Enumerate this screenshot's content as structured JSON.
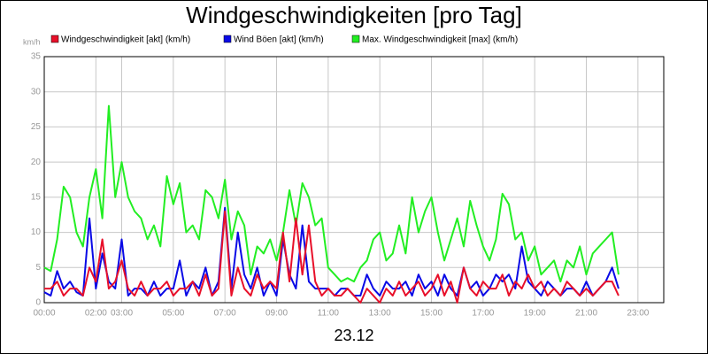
{
  "chart_data": {
    "type": "line",
    "title": "Windgeschwindigkeiten [pro Tag]",
    "x_label": "23.12",
    "y_label": "km/h",
    "x": [
      0,
      0.25,
      0.5,
      0.75,
      1,
      1.25,
      1.5,
      1.75,
      2,
      2.25,
      2.5,
      2.75,
      3,
      3.25,
      3.5,
      3.75,
      4,
      4.25,
      4.5,
      4.75,
      5,
      5.25,
      5.5,
      5.75,
      6,
      6.25,
      6.5,
      6.75,
      7,
      7.25,
      7.5,
      7.75,
      8,
      8.25,
      8.5,
      8.75,
      9,
      9.25,
      9.5,
      9.75,
      10,
      10.25,
      10.5,
      10.75,
      11,
      11.25,
      11.5,
      11.75,
      12,
      12.25,
      12.5,
      12.75,
      13,
      13.25,
      13.5,
      13.75,
      14,
      14.25,
      14.5,
      14.75,
      15,
      15.25,
      15.5,
      15.75,
      16,
      16.25,
      16.5,
      16.75,
      17,
      17.25,
      17.5,
      17.75,
      18,
      18.25,
      18.5,
      18.75,
      19,
      19.25,
      19.5,
      19.75,
      20,
      20.25,
      20.5,
      20.75,
      21,
      21.25,
      21.5,
      21.75,
      22,
      22.25
    ],
    "xlim": [
      0,
      24
    ],
    "xticks": [
      {
        "value": 0,
        "label": "00:00"
      },
      {
        "value": 2,
        "label": "02:00"
      },
      {
        "value": 3,
        "label": "03:00"
      },
      {
        "value": 5,
        "label": "05:00"
      },
      {
        "value": 7,
        "label": "07:00"
      },
      {
        "value": 9,
        "label": "09:00"
      },
      {
        "value": 11,
        "label": "11:00"
      },
      {
        "value": 13,
        "label": "13:00"
      },
      {
        "value": 15,
        "label": "15:00"
      },
      {
        "value": 17,
        "label": "17:00"
      },
      {
        "value": 19,
        "label": "19:00"
      },
      {
        "value": 21,
        "label": "21:00"
      },
      {
        "value": 23,
        "label": "23:00"
      }
    ],
    "ylim": [
      0,
      35
    ],
    "yticks": [
      0,
      5,
      10,
      15,
      20,
      25,
      30,
      35
    ],
    "grid": true,
    "series": [
      {
        "name": "Windgeschwindigkeit [akt] (km/h)",
        "color": "#e8102a",
        "values": [
          2,
          2,
          3,
          1,
          2,
          2,
          1,
          5,
          3,
          9,
          2,
          3,
          6,
          2,
          1,
          3,
          1,
          2,
          2,
          3,
          1,
          2,
          2,
          3,
          1,
          4,
          1,
          2,
          13,
          1,
          5,
          2,
          1,
          4,
          2,
          3,
          2,
          10,
          3,
          12,
          4,
          11,
          3,
          1,
          2,
          1,
          1,
          2,
          1,
          0,
          2,
          1,
          0,
          2,
          1,
          3,
          1,
          2,
          3,
          1,
          2,
          4,
          1,
          3,
          0,
          5,
          2,
          1,
          3,
          2,
          2,
          4,
          1,
          3,
          2,
          4,
          2,
          3,
          1,
          2,
          1,
          3,
          2,
          1,
          2,
          1,
          2,
          3,
          3,
          1
        ]
      },
      {
        "name": "Wind Böen [akt] (km/h)",
        "color": "#0a0ae6",
        "values": [
          1.5,
          1,
          4.5,
          2,
          3,
          1.5,
          1,
          12,
          2,
          7,
          3,
          2,
          9,
          1,
          2,
          2,
          1,
          3,
          1,
          2,
          2,
          6,
          1,
          3,
          2,
          5,
          1,
          3,
          13.5,
          2,
          10,
          4,
          2,
          5,
          1,
          3,
          1,
          9,
          4,
          2,
          11,
          3,
          2,
          2,
          2,
          1,
          2,
          2,
          1,
          1,
          4,
          2,
          1,
          3,
          2,
          2,
          3,
          1,
          4,
          2,
          3,
          1,
          4,
          2,
          1,
          5,
          2,
          3,
          1,
          2,
          4,
          3,
          4,
          2,
          8,
          3,
          2,
          1,
          3,
          2,
          1,
          2,
          2,
          1,
          3,
          1,
          2,
          3,
          5,
          2
        ]
      },
      {
        "name": "Max. Windgeschwindigkeit [max] (km/h)",
        "color": "#22ee22",
        "values": [
          5,
          4.5,
          9,
          16.5,
          15,
          10,
          8,
          15,
          19,
          12,
          28,
          15,
          20,
          15,
          13,
          12,
          9,
          11,
          8,
          18,
          14,
          17,
          10,
          11,
          9,
          16,
          15,
          12,
          17.5,
          9,
          13,
          11,
          4,
          8,
          7,
          9,
          6,
          10,
          16,
          11,
          17,
          15,
          11,
          12,
          5,
          4,
          3,
          3.5,
          3,
          5,
          6,
          9,
          10,
          6,
          7,
          11,
          7,
          15,
          10,
          13,
          15,
          10,
          6,
          9,
          12,
          8,
          14.5,
          11,
          8,
          6,
          9,
          15.5,
          14,
          9,
          10,
          6,
          8,
          4,
          5,
          6,
          3,
          6,
          5,
          8,
          4,
          7,
          8,
          9,
          10,
          4
        ]
      }
    ]
  }
}
